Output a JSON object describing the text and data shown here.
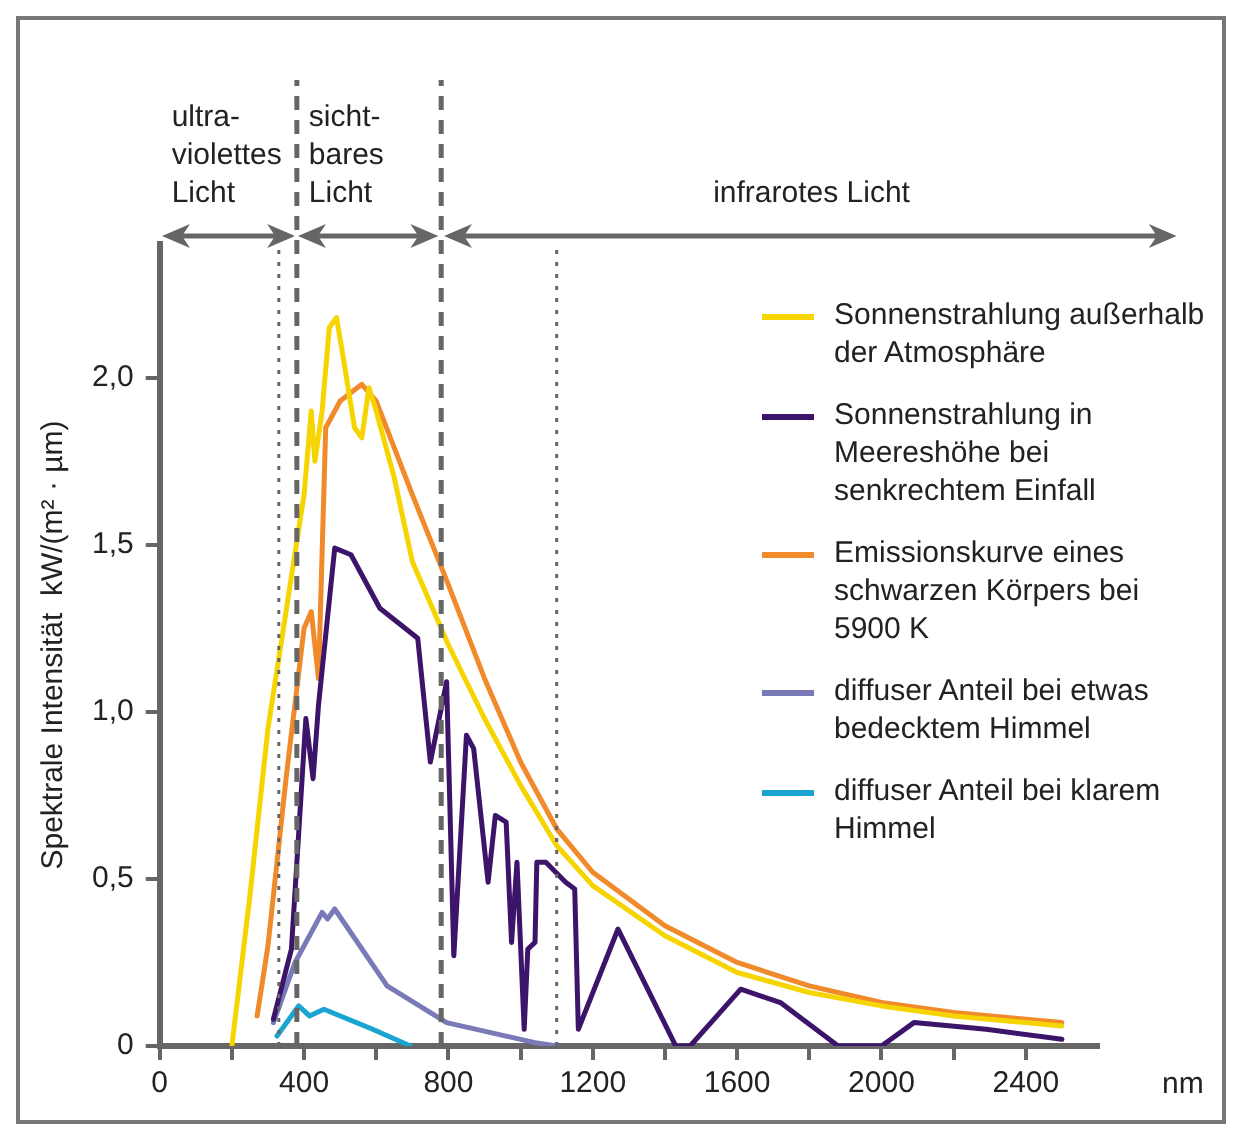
{
  "chart_data": {
    "type": "line",
    "ylabel": "Spektrale Intensität  kW/(m² · µm)",
    "xlabel": "nm",
    "xlim": [
      0,
      2600
    ],
    "xticks": [
      0,
      {
        "value": 200,
        "label": null
      },
      400,
      {
        "value": 600,
        "label": null
      },
      800,
      {
        "value": 1000,
        "label": null
      },
      1200,
      {
        "value": 1400,
        "label": null
      },
      1600,
      {
        "value": 1800,
        "label": null
      },
      2000,
      {
        "value": 2200,
        "label": null
      },
      2400
    ],
    "ylim": [
      0,
      2.4
    ],
    "yticks": [
      0,
      {
        "value": 0.5,
        "label": "0,5"
      },
      {
        "value": 1,
        "label": "1,0"
      },
      {
        "value": 1.5,
        "label": "1,5"
      },
      {
        "value": 2,
        "label": "2,0"
      }
    ],
    "legend": "top right",
    "marker": "none",
    "line_style": "solid",
    "series": [
      {
        "name": "Sonnenstrahlung außerhalb der Atmosphäre",
        "color": "#f5d400",
        "x": [
          200,
          250,
          300,
          350,
          400,
          420,
          430,
          450,
          470,
          490,
          510,
          540,
          560,
          580,
          600,
          650,
          700,
          800,
          900,
          1000,
          1100,
          1200,
          1400,
          1600,
          1800,
          2000,
          2200,
          2400,
          2500
        ],
        "values": [
          0,
          0.45,
          0.95,
          1.3,
          1.65,
          1.9,
          1.75,
          1.9,
          2.15,
          2.18,
          2.05,
          1.85,
          1.82,
          1.97,
          1.9,
          1.7,
          1.45,
          1.2,
          0.98,
          0.78,
          0.6,
          0.48,
          0.33,
          0.22,
          0.16,
          0.12,
          0.09,
          0.07,
          0.06
        ]
      },
      {
        "name": "Sonnenstrahlung in Meereshöhe bei senkrechtem Einfall",
        "color": "#3c1469",
        "x": [
          315,
          365,
          405,
          425,
          440,
          485,
          530,
          610,
          715,
          750,
          795,
          815,
          850,
          870,
          910,
          930,
          960,
          975,
          990,
          1010,
          1020,
          1040,
          1045,
          1070,
          1125,
          1150,
          1160,
          1270,
          1430,
          1470,
          1610,
          1720,
          1880,
          2000,
          2090,
          2290,
          2500
        ],
        "values": [
          0.08,
          0.29,
          0.98,
          0.8,
          1.02,
          1.49,
          1.47,
          1.31,
          1.22,
          0.85,
          1.09,
          0.27,
          0.93,
          0.89,
          0.49,
          0.69,
          0.67,
          0.31,
          0.55,
          0.05,
          0.29,
          0.31,
          0.55,
          0.55,
          0.49,
          0.47,
          0.05,
          0.35,
          0,
          0,
          0.17,
          0.13,
          0,
          0,
          0.07,
          0.05,
          0.02
        ]
      },
      {
        "name": "Emissionskurve eines schwarzen Körpers bei 5900 K",
        "color": "#f08a2a",
        "x": [
          270,
          300,
          350,
          400,
          420,
          440,
          460,
          500,
          560,
          600,
          700,
          800,
          900,
          1000,
          1100,
          1200,
          1400,
          1600,
          1800,
          2000,
          2200,
          2400,
          2500
        ],
        "values": [
          0.09,
          0.3,
          0.8,
          1.25,
          1.3,
          1.1,
          1.85,
          1.93,
          1.98,
          1.93,
          1.65,
          1.38,
          1.1,
          0.85,
          0.65,
          0.52,
          0.36,
          0.25,
          0.18,
          0.13,
          0.1,
          0.08,
          0.07
        ]
      },
      {
        "name": "diffuser Anteil bei etwas bedecktem Himmel",
        "color": "#7a7ab8",
        "x": [
          315,
          375,
          450,
          465,
          485,
          630,
          795,
          1040,
          1100
        ],
        "values": [
          0.07,
          0.25,
          0.4,
          0.38,
          0.41,
          0.18,
          0.07,
          0.01,
          0
        ]
      },
      {
        "name": "diffuser Anteil bei klarem Himmel",
        "color": "#1aa5d0",
        "x": [
          325,
          385,
          415,
          455,
          590,
          695
        ],
        "values": [
          0.03,
          0.12,
          0.09,
          0.11,
          0.05,
          0
        ]
      }
    ],
    "ref_lines": [
      {
        "axis": "x",
        "value": 380,
        "line_style": "dashed"
      },
      {
        "axis": "x",
        "value": 780,
        "line_style": "dashed"
      },
      {
        "axis": "x",
        "value": 330,
        "line_style": "dotted"
      },
      {
        "axis": "x",
        "value": 1100,
        "line_style": "dotted"
      }
    ],
    "annotations": [
      "ultra-violettes Licht",
      "sicht-bares Licht",
      "infrarotes Licht"
    ]
  }
}
